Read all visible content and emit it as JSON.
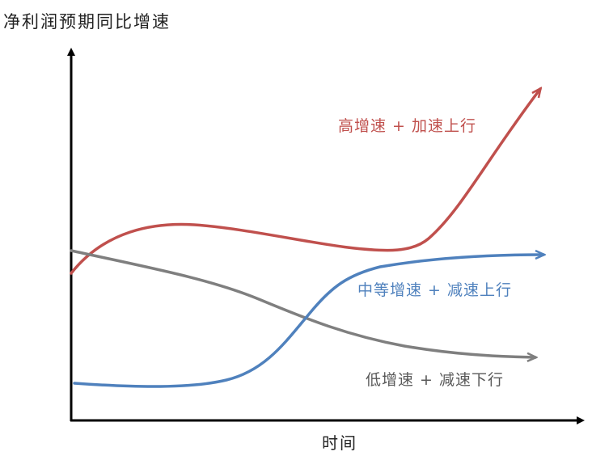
{
  "y_axis_label": "净利润预期同比增速",
  "x_axis_label": "时间",
  "curves": [
    {
      "label": "高增速 + 加速上行",
      "color": "#c0504d"
    },
    {
      "label": "中等增速 + 减速上行",
      "color": "#4f81bd"
    },
    {
      "label": "低增速 + 减速下行",
      "color": "#7f7f7f"
    }
  ],
  "axis_color": "#000000"
}
